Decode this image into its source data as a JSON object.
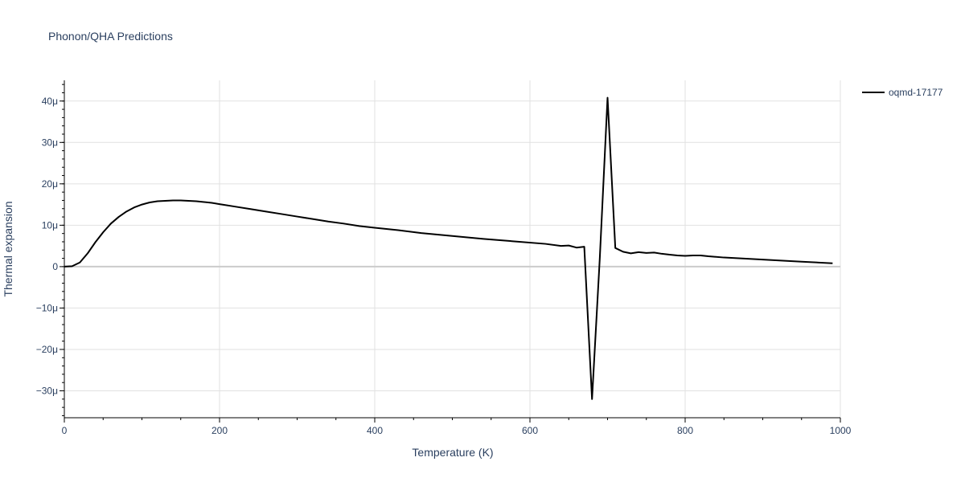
{
  "chart_data": {
    "type": "line",
    "title": "Phonon/QHA Predictions",
    "xlabel": "Temperature (K)",
    "ylabel": "Thermal expansion",
    "xlim": [
      0,
      1000
    ],
    "ylim": [
      -3.65e-05,
      4.5e-05
    ],
    "x_ticks": [
      0,
      200,
      400,
      600,
      800,
      1000
    ],
    "x_tick_labels": [
      "0",
      "200",
      "400",
      "600",
      "800",
      "1000"
    ],
    "y_ticks": [
      -3e-05,
      -2e-05,
      -1e-05,
      0,
      1e-05,
      2e-05,
      3e-05,
      4e-05
    ],
    "y_tick_labels": [
      "−30μ",
      "−20μ",
      "−10μ",
      "0",
      "10μ",
      "20μ",
      "30μ",
      "40μ"
    ],
    "grid": true,
    "legend_position": "top-right",
    "series": [
      {
        "name": "oqmd-17177",
        "color": "#000000",
        "x": [
          0,
          10,
          20,
          30,
          40,
          50,
          60,
          70,
          80,
          90,
          100,
          110,
          120,
          130,
          140,
          150,
          160,
          170,
          180,
          190,
          200,
          220,
          240,
          260,
          280,
          300,
          320,
          340,
          360,
          380,
          400,
          430,
          460,
          500,
          540,
          580,
          620,
          640,
          650,
          660,
          670,
          680,
          690,
          700,
          710,
          720,
          730,
          740,
          750,
          760,
          770,
          780,
          790,
          800,
          810,
          820,
          830,
          850,
          900,
          950,
          990
        ],
        "y": [
          0,
          1e-07,
          1e-06,
          3.2e-06,
          5.9e-06,
          8.3e-06,
          1.04e-05,
          1.2e-05,
          1.33e-05,
          1.43e-05,
          1.5e-05,
          1.55e-05,
          1.58e-05,
          1.59e-05,
          1.6e-05,
          1.6e-05,
          1.59e-05,
          1.58e-05,
          1.56e-05,
          1.54e-05,
          1.51e-05,
          1.45e-05,
          1.39e-05,
          1.33e-05,
          1.27e-05,
          1.21e-05,
          1.15e-05,
          1.09e-05,
          1.04e-05,
          9.8e-06,
          9.4e-06,
          8.8e-06,
          8.1e-06,
          7.4e-06,
          6.7e-06,
          6.1e-06,
          5.5e-06,
          5e-06,
          5.1e-06,
          4.6e-06,
          4.8e-06,
          -3.2e-05,
          2e-06,
          4.08e-05,
          4.5e-06,
          3.6e-06,
          3.2e-06,
          3.5e-06,
          3.3e-06,
          3.4e-06,
          3.1e-06,
          2.9e-06,
          2.7e-06,
          2.6e-06,
          2.7e-06,
          2.7e-06,
          2.5e-06,
          2.2e-06,
          1.7e-06,
          1.2e-06,
          8e-07
        ]
      }
    ]
  }
}
